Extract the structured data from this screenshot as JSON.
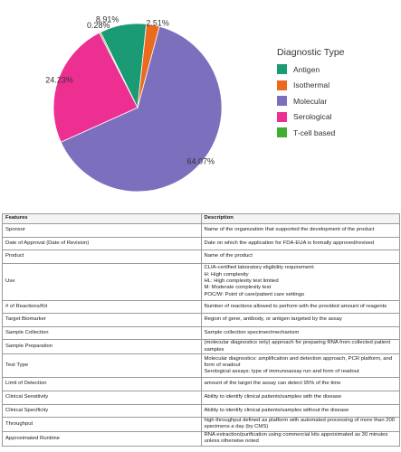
{
  "chart_data": {
    "type": "pie",
    "legend_title": "Diagnostic Type",
    "legend_position": "right",
    "slices": [
      {
        "label": "Molecular",
        "value": 64.07,
        "display": "64.07%",
        "color": "#7c6fbd"
      },
      {
        "label": "Serological",
        "value": 24.23,
        "display": "24.23%",
        "color": "#ee2f92"
      },
      {
        "label": "T-cell based",
        "value": 0.28,
        "display": "0.28%",
        "color": "#3fae32"
      },
      {
        "label": "Antigen",
        "value": 8.91,
        "display": "8.91%",
        "color": "#1b9b73"
      },
      {
        "label": "Isothermal",
        "value": 2.51,
        "display": "2.51%",
        "color": "#ec6a1f"
      }
    ],
    "legend": [
      {
        "label": "Antigen",
        "color": "#1b9b73"
      },
      {
        "label": "Isothermal",
        "color": "#ec6a1f"
      },
      {
        "label": "Molecular",
        "color": "#7c6fbd"
      },
      {
        "label": "Serological",
        "color": "#ee2f92"
      },
      {
        "label": "T-cell based",
        "color": "#3fae32"
      }
    ]
  },
  "table": {
    "headers": [
      "Features",
      "Description"
    ],
    "rows": [
      {
        "feature": "Sponsor",
        "lines": [
          "Name of the organization that supported the development of the product"
        ]
      },
      {
        "feature": "Date of Approval (Date of Revision)",
        "lines": [
          "Date on which the application for FDA-EUA is formally approved/revised"
        ]
      },
      {
        "feature": "Product",
        "lines": [
          "Name of the product"
        ]
      },
      {
        "feature": "Use",
        "lines": [
          "CLIA-certified laboratory eligibility requirement:",
          "H: High complexity",
          "HL: High complexity test limited",
          "M: Moderate complexity test",
          "POC/W: Point of care/patient care settings"
        ]
      },
      {
        "feature": "# of Reactions/Kit",
        "lines": [
          "Number of reactions allowed to perform with the provided amount of reagents"
        ]
      },
      {
        "feature": "Target Biomarker",
        "lines": [
          "Region of gene, antibody, or antigen targeted by the assay"
        ]
      },
      {
        "feature": "Sample Collection",
        "lines": [
          "Sample collection specimen/mechanism"
        ]
      },
      {
        "feature": "Sample Preparation",
        "lines": [
          "(molecular diagnostics only) approach for preparing RNA from collected patient samples"
        ]
      },
      {
        "feature": "Test Type",
        "lines": [
          "Molecular diagnostics: amplification and detection approach, PCR platform, and form of readout",
          "Serological assays: type of immunoassay run and form of readout"
        ]
      },
      {
        "feature": "Limit of Detection",
        "lines": [
          "amount of the target the assay can detect 95% of the time"
        ]
      },
      {
        "feature": "Clinical Sensitivity",
        "lines": [
          "Ability to identify clinical patients/samples with the disease"
        ]
      },
      {
        "feature": "Clinical Specificity",
        "lines": [
          "Ability to identify clinical patients/samples without the disease"
        ]
      },
      {
        "feature": "Throughput",
        "lines": [
          "high throughput defined as platform with automated processing of more than 200 specimens a day (by CMS)"
        ]
      },
      {
        "feature": "Approximated Runtime",
        "lines": [
          "RNA extraction/purification using commercial kits approximated as 30 minutes unless otherwise noted"
        ]
      }
    ]
  }
}
